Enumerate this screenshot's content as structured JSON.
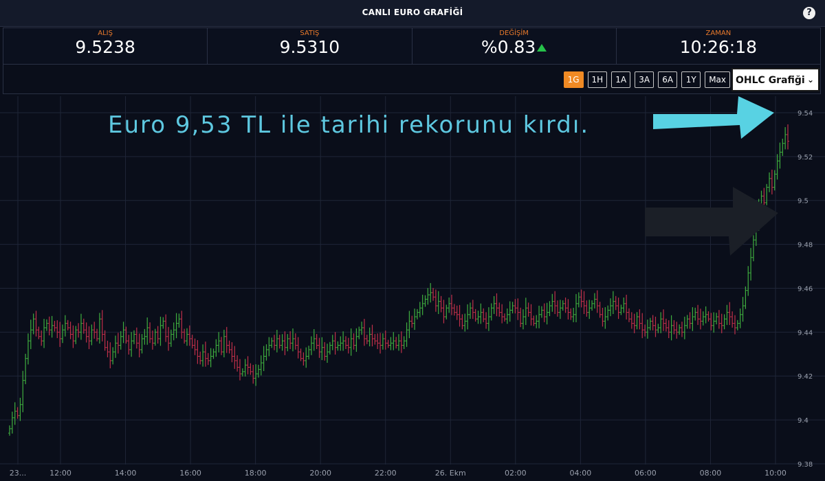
{
  "header": {
    "title": "CANLI EURO GRAFİĞİ",
    "help_label": "?"
  },
  "stats": [
    {
      "label": "ALIŞ",
      "value": "9.5238"
    },
    {
      "label": "SATIŞ",
      "value": "9.5310"
    },
    {
      "label": "DEĞİŞİM",
      "value": "%0.83"
    },
    {
      "label": "ZAMAN",
      "value": "10:26:18"
    }
  ],
  "ranges": [
    "1G",
    "1H",
    "1A",
    "3A",
    "6A",
    "1Y",
    "Max"
  ],
  "active_range": "1G",
  "chart_type_select": "OHLC Grafiği",
  "annotation": {
    "text": "Euro 9,53 TL ile tarihi rekorunu kırdı."
  },
  "colors": {
    "up": "#3fae3f",
    "down": "#c0304a",
    "accent": "#f08a24",
    "caption": "#5ec8e0"
  },
  "chart_data": {
    "type": "ohlc",
    "x_ticks": [
      "23...",
      "12:00",
      "14:00",
      "16:00",
      "18:00",
      "20:00",
      "22:00",
      "26. Ekm",
      "02:00",
      "04:00",
      "06:00",
      "08:00",
      "10:00"
    ],
    "y_ticks": [
      9.38,
      9.4,
      9.42,
      9.44,
      9.46,
      9.48,
      9.5,
      9.52,
      9.54
    ],
    "ylim": [
      9.38,
      9.545
    ],
    "grid": true,
    "close": [
      9.396,
      9.401,
      9.404,
      9.402,
      9.407,
      9.418,
      9.428,
      9.436,
      9.441,
      9.446,
      9.441,
      9.438,
      9.436,
      9.442,
      9.444,
      9.441,
      9.443,
      9.442,
      9.44,
      9.437,
      9.441,
      9.444,
      9.442,
      9.439,
      9.436,
      9.441,
      9.44,
      9.444,
      9.441,
      9.438,
      9.436,
      9.441,
      9.44,
      9.437,
      9.446,
      9.439,
      9.433,
      9.431,
      9.427,
      9.431,
      9.435,
      9.434,
      9.438,
      9.441,
      9.436,
      9.432,
      9.436,
      9.439,
      9.435,
      9.432,
      9.437,
      9.438,
      9.442,
      9.437,
      9.435,
      9.44,
      9.437,
      9.443,
      9.445,
      9.438,
      9.435,
      9.439,
      9.441,
      9.444,
      9.446,
      9.44,
      9.436,
      9.439,
      9.437,
      9.434,
      9.432,
      9.429,
      9.427,
      9.431,
      9.428,
      9.427,
      9.429,
      9.431,
      9.434,
      9.436,
      9.431,
      9.438,
      9.434,
      9.432,
      9.429,
      9.427,
      9.424,
      9.421,
      9.422,
      9.425,
      9.424,
      9.422,
      9.419,
      9.421,
      9.423,
      9.426,
      9.429,
      9.432,
      9.434,
      9.436,
      9.434,
      9.437,
      9.434,
      9.436,
      9.433,
      9.437,
      9.435,
      9.437,
      9.434,
      9.431,
      9.428,
      9.427,
      9.429,
      9.432,
      9.435,
      9.437,
      9.434,
      9.431,
      9.433,
      9.429,
      9.431,
      9.434,
      9.436,
      9.433,
      9.434,
      9.435,
      9.436,
      9.434,
      9.433,
      9.437,
      9.434,
      9.438,
      9.441,
      9.442,
      9.437,
      9.436,
      9.439,
      9.437,
      9.436,
      9.435,
      9.434,
      9.437,
      9.435,
      9.434,
      9.435,
      9.436,
      9.434,
      9.436,
      9.434,
      9.436,
      9.441,
      9.445,
      9.444,
      9.447,
      9.449,
      9.451,
      9.453,
      9.455,
      9.457,
      9.458,
      9.456,
      9.452,
      9.454,
      9.451,
      9.447,
      9.451,
      9.453,
      9.451,
      9.449,
      9.448,
      9.446,
      9.443,
      9.445,
      9.448,
      9.451,
      9.449,
      9.446,
      9.447,
      9.449,
      9.446,
      9.444,
      9.447,
      9.451,
      9.453,
      9.451,
      9.449,
      9.447,
      9.446,
      9.448,
      9.45,
      9.452,
      9.451,
      9.449,
      9.444,
      9.447,
      9.451,
      9.449,
      9.446,
      9.444,
      9.445,
      9.448,
      9.45,
      9.447,
      9.449,
      9.452,
      9.454,
      9.452,
      9.449,
      9.451,
      9.453,
      9.451,
      9.449,
      9.447,
      9.448,
      9.453,
      9.456,
      9.454,
      9.452,
      9.449,
      9.451,
      9.453,
      9.455,
      9.452,
      9.448,
      9.445,
      9.447,
      9.45,
      9.452,
      9.454,
      9.452,
      9.449,
      9.451,
      9.453,
      9.449,
      9.446,
      9.444,
      9.443,
      9.447,
      9.444,
      9.441,
      9.44,
      9.442,
      9.445,
      9.443,
      9.441,
      9.442,
      9.446,
      9.444,
      9.442,
      9.44,
      9.443,
      9.441,
      9.44,
      9.442,
      9.44,
      9.443,
      9.446,
      9.444,
      9.447,
      9.449,
      9.446,
      9.445,
      9.447,
      9.448,
      9.446,
      9.443,
      9.445,
      9.447,
      9.444,
      9.443,
      9.446,
      9.449,
      9.447,
      9.444,
      9.442,
      9.444,
      9.448,
      9.452,
      9.459,
      9.467,
      9.474,
      9.482,
      9.49,
      9.496,
      9.502,
      9.499,
      9.506,
      9.51,
      9.506,
      9.512,
      9.518,
      9.522,
      9.526,
      9.53,
      9.527
    ]
  }
}
